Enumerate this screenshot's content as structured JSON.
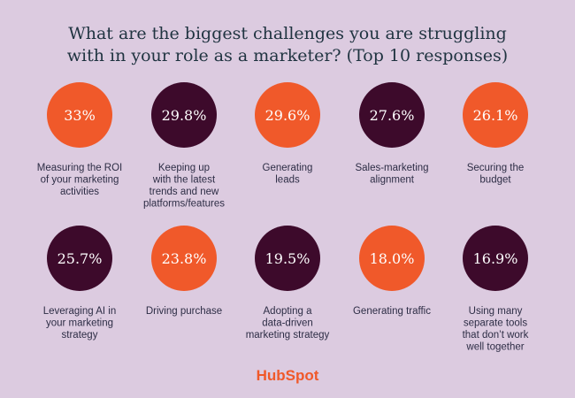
{
  "chart_data": {
    "type": "circles",
    "title": [
      "What are the biggest challenges you are struggling",
      "with in your role as a marketer? (Top 10 responses)"
    ],
    "categories": [
      [
        "Measuring the ROI",
        "of your marketing",
        "activities"
      ],
      [
        "Keeping up",
        "with the latest",
        "trends and new",
        "platforms/features"
      ],
      [
        "Generating",
        "leads"
      ],
      [
        "Sales-marketing",
        "alignment"
      ],
      [
        "Securing the",
        "budget"
      ],
      [
        "Leveraging AI in",
        "your marketing",
        "strategy"
      ],
      [
        "Driving purchase"
      ],
      [
        "Adopting a",
        "data-driven",
        "marketing strategy"
      ],
      [
        "Generating traffic"
      ],
      [
        "Using many",
        "separate tools",
        "that don’t work",
        "well together"
      ]
    ],
    "values": [
      33,
      29.8,
      29.6,
      27.6,
      26.1,
      25.7,
      23.8,
      19.5,
      18.0,
      16.9
    ],
    "value_labels": [
      "33%",
      "29.8%",
      "29.6%",
      "27.6%",
      "26.1%",
      "25.7%",
      "23.8%",
      "19.5%",
      "18.0%",
      "16.9%"
    ],
    "colors": [
      "#f0592a",
      "#3d0a2b",
      "#f0592a",
      "#3d0a2b",
      "#f0592a",
      "#3d0a2b",
      "#f0592a",
      "#3d0a2b",
      "#f0592a",
      "#3d0a2b"
    ],
    "logo": "HubSpot"
  }
}
